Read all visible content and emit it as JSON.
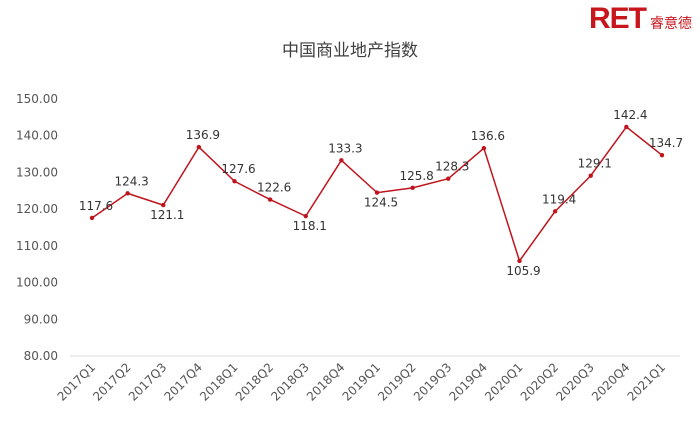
{
  "brand": {
    "mark": "RET",
    "name": "睿意德"
  },
  "chart_data": {
    "type": "line",
    "title": "中国商业地产指数",
    "xlabel": "",
    "ylabel": "",
    "categories": [
      "2017Q1",
      "2017Q2",
      "2017Q3",
      "2017Q4",
      "2018Q1",
      "2018Q2",
      "2018Q3",
      "2018Q4",
      "2019Q1",
      "2019Q2",
      "2019Q3",
      "2019Q4",
      "2020Q1",
      "2020Q2",
      "2020Q3",
      "2020Q4",
      "2021Q1"
    ],
    "values": [
      117.6,
      124.3,
      121.1,
      136.9,
      127.6,
      122.6,
      118.1,
      133.3,
      124.5,
      125.8,
      128.3,
      136.6,
      105.9,
      119.4,
      129.1,
      142.4,
      134.7
    ],
    "data_labels": [
      "117.6",
      "124.3",
      "121.1",
      "136.9",
      "127.6",
      "122.6",
      "118.1",
      "133.3",
      "124.5",
      "125.8",
      "128.3",
      "136.6",
      "105.9",
      "119.4",
      "129.1",
      "142.4",
      "134.7"
    ],
    "ylim": [
      80,
      150
    ],
    "y_ticks": [
      "80.00",
      "90.00",
      "100.00",
      "110.00",
      "120.00",
      "130.00",
      "140.00",
      "150.00"
    ],
    "line_color": "#c0141c",
    "grid": false,
    "legend": "none"
  }
}
